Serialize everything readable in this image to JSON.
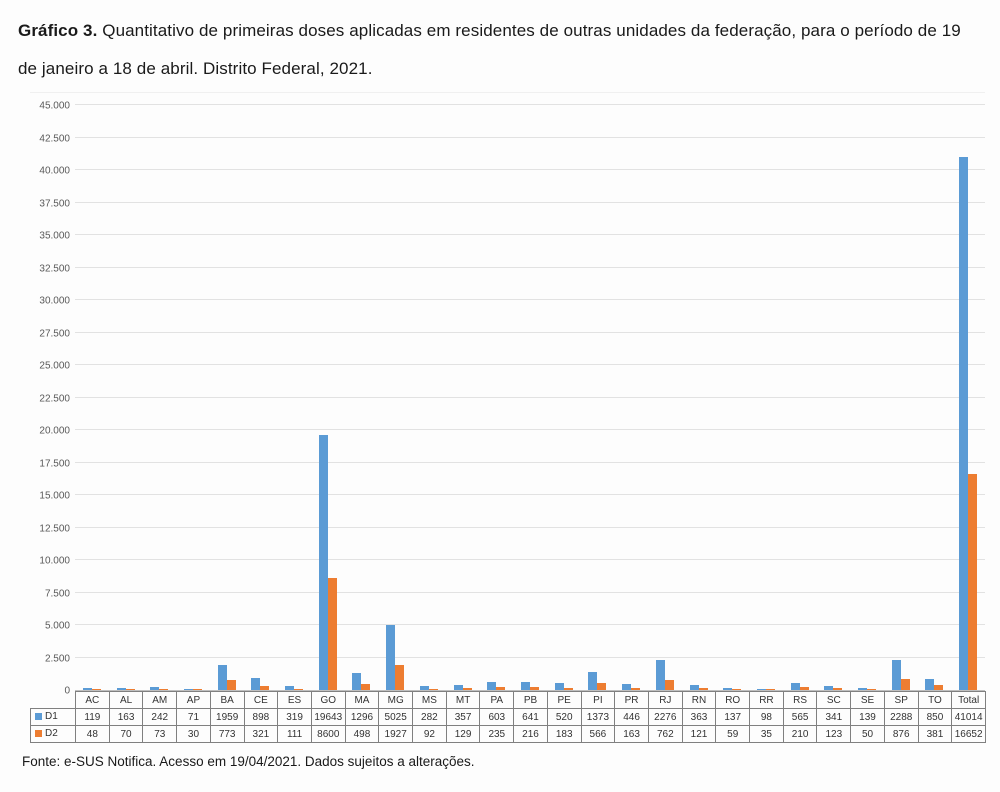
{
  "title": {
    "bold": "Gráfico 3.",
    "text": " Quantitativo de primeiras doses aplicadas em residentes de outras unidades da federação, para o período de 19 de janeiro a 18 de abril. Distrito Federal, 2021."
  },
  "source": "Fonte: e-SUS Notifica. Acesso em 19/04/2021. Dados sujeitos a alterações.",
  "chart_data": {
    "type": "bar",
    "title": "Quantitativo de primeiras doses aplicadas em residentes de outras unidades da federação, 19/01–18/04, Distrito Federal, 2021",
    "categories": [
      "AC",
      "AL",
      "AM",
      "AP",
      "BA",
      "CE",
      "ES",
      "GO",
      "MA",
      "MG",
      "MS",
      "MT",
      "PA",
      "PB",
      "PE",
      "PI",
      "PR",
      "RJ",
      "RN",
      "RO",
      "RR",
      "RS",
      "SC",
      "SE",
      "SP",
      "TO",
      "Total"
    ],
    "series": [
      {
        "name": "D1",
        "color": "#5b9bd5",
        "values": [
          119,
          163,
          242,
          71,
          1959,
          898,
          319,
          19643,
          1296,
          5025,
          282,
          357,
          603,
          641,
          520,
          1373,
          446,
          2276,
          363,
          137,
          98,
          565,
          341,
          139,
          2288,
          850,
          41014
        ]
      },
      {
        "name": "D2",
        "color": "#ed7d31",
        "values": [
          48,
          70,
          73,
          30,
          773,
          321,
          111,
          8600,
          498,
          1927,
          92,
          129,
          235,
          216,
          183,
          566,
          163,
          762,
          121,
          59,
          35,
          210,
          123,
          50,
          876,
          381,
          16652
        ]
      }
    ],
    "xlabel": "",
    "ylabel": "",
    "ylim": [
      0,
      45000
    ],
    "ytick_step": 2500,
    "ytick_labels": [
      "0",
      "2.500",
      "5.000",
      "7.500",
      "10.000",
      "12.500",
      "15.000",
      "17.500",
      "20.000",
      "22.500",
      "25.000",
      "27.500",
      "30.000",
      "32.500",
      "35.000",
      "37.500",
      "40.000",
      "42.500",
      "45.000"
    ],
    "grid": true,
    "legend_position": "table-left",
    "colors": {
      "d1": "#5b9bd5",
      "d2": "#ed7d31",
      "gridline": "#e2e2e2"
    }
  }
}
